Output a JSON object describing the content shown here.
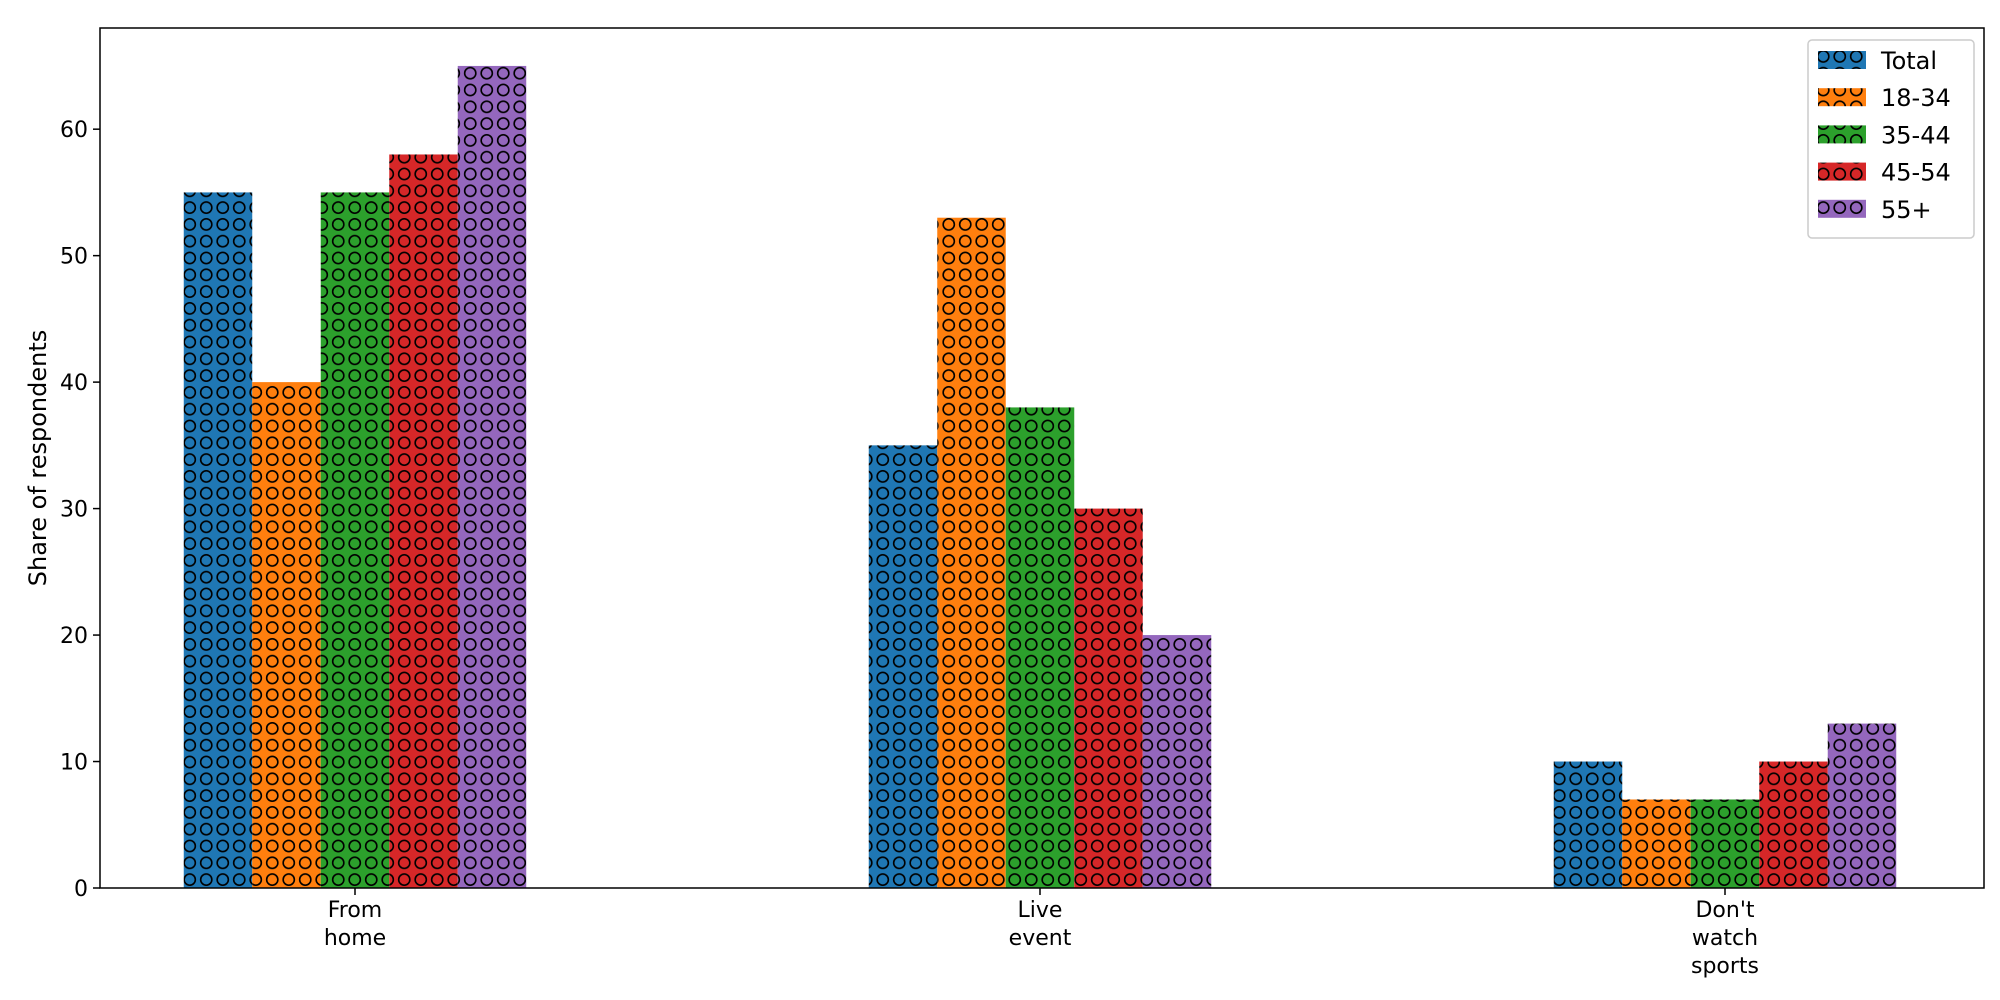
{
  "chart_data": {
    "type": "bar",
    "title": "",
    "xlabel": "",
    "ylabel": "Share of respondents",
    "ylim": [
      0,
      68
    ],
    "yticks": [
      0,
      10,
      20,
      30,
      40,
      50,
      60
    ],
    "categories": [
      [
        "From",
        "home"
      ],
      [
        "Live",
        "event"
      ],
      [
        "Don't",
        "watch",
        "sports"
      ]
    ],
    "series": [
      {
        "name": "Total",
        "color": "#1f77b4",
        "values": [
          55,
          35,
          10
        ]
      },
      {
        "name": "18-34",
        "color": "#ff7f0e",
        "values": [
          40,
          53,
          7
        ]
      },
      {
        "name": "35-44",
        "color": "#2ca02c",
        "values": [
          55,
          38,
          7
        ]
      },
      {
        "name": "45-54",
        "color": "#d62728",
        "values": [
          58,
          30,
          10
        ]
      },
      {
        "name": "55+",
        "color": "#9467bd",
        "values": [
          65,
          20,
          13
        ]
      }
    ],
    "hatch": "circles",
    "grid": false,
    "legend_position": "top-right"
  }
}
